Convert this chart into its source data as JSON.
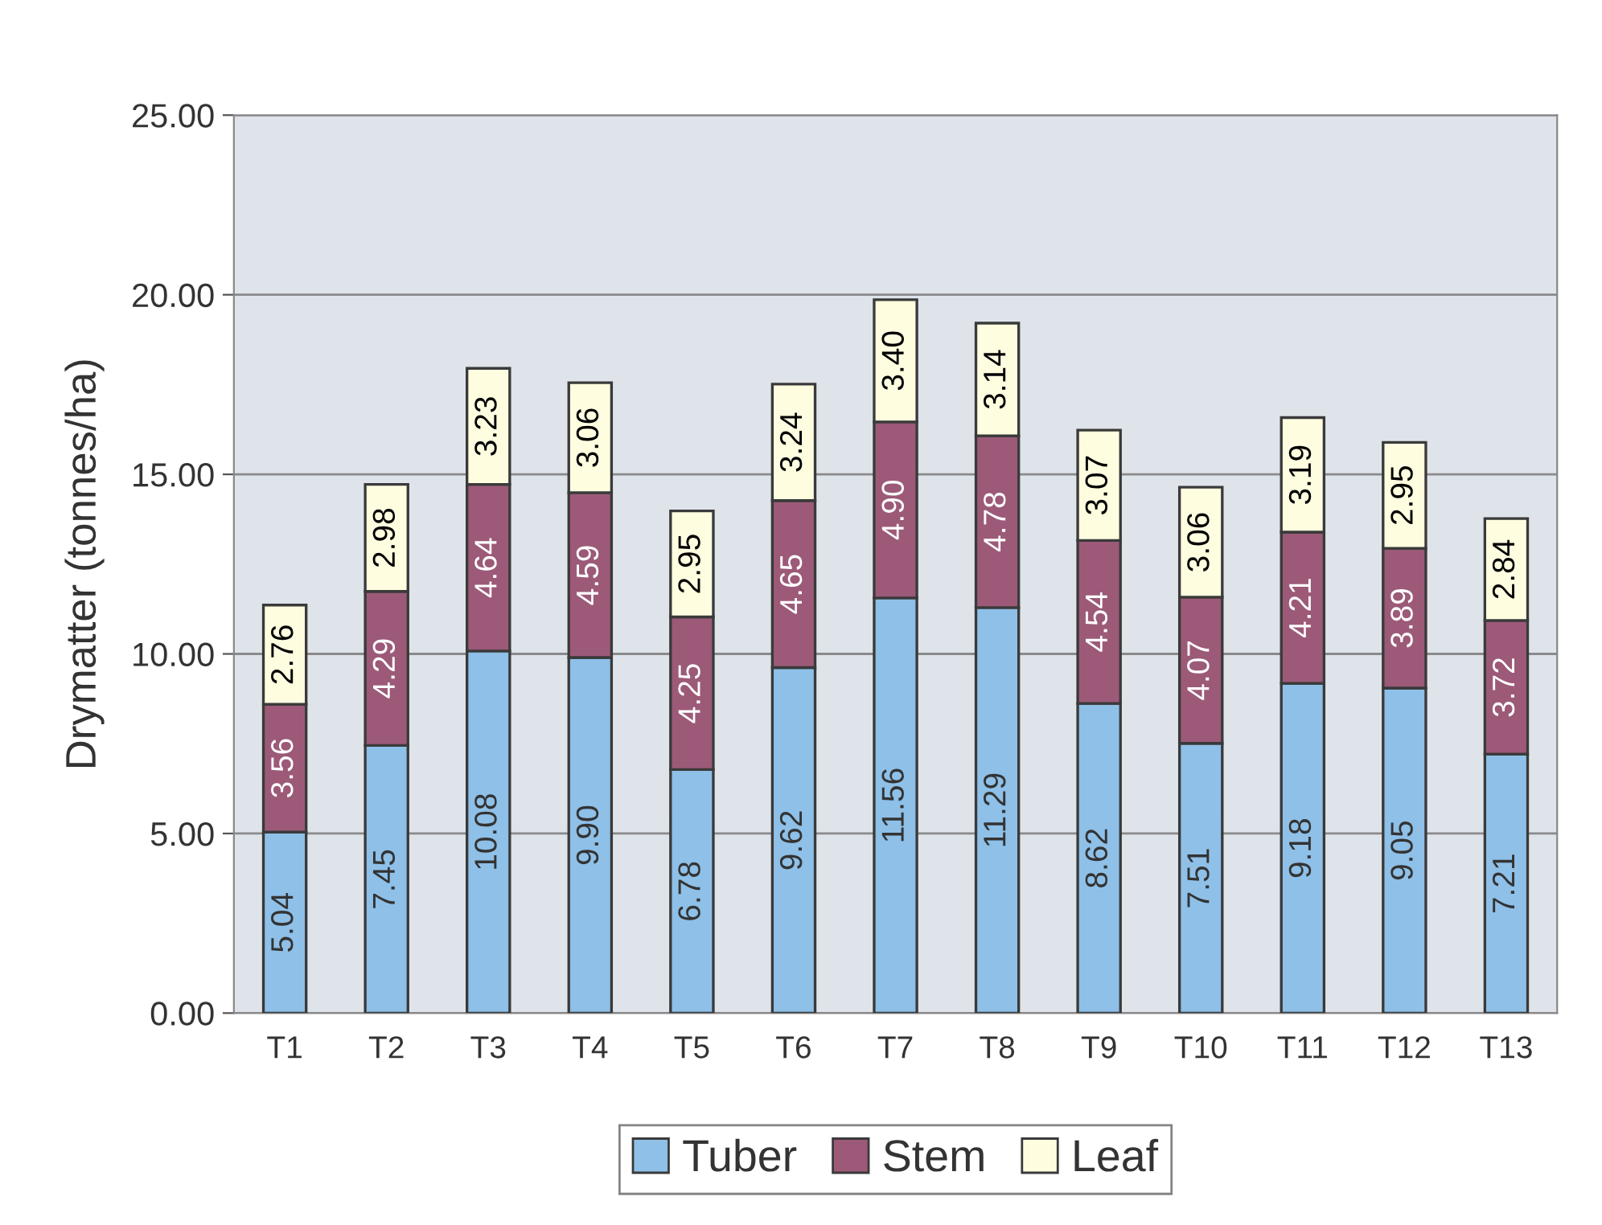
{
  "chart_data": {
    "type": "bar",
    "stacked": true,
    "ylabel": "Drymatter (tonnes/ha)",
    "categories": [
      "T1",
      "T2",
      "T3",
      "T4",
      "T5",
      "T6",
      "T7",
      "T8",
      "T9",
      "T10",
      "T11",
      "T12",
      "T13"
    ],
    "series": [
      {
        "name": "Tuber",
        "color": "#8ec0e8",
        "values": [
          5.04,
          7.45,
          10.08,
          9.9,
          6.78,
          9.62,
          11.56,
          11.29,
          8.62,
          7.51,
          9.18,
          9.05,
          7.21
        ],
        "value_labels": [
          "5.04",
          "7.45",
          "10.08",
          "9.90",
          "6.78",
          "9.62",
          "11.56",
          "11.29",
          "8.62",
          "7.51",
          "9.18",
          "9.05",
          "7.21"
        ]
      },
      {
        "name": "Stem",
        "color": "#9c5a78",
        "values": [
          3.56,
          4.29,
          4.64,
          4.59,
          4.25,
          4.65,
          4.9,
          4.78,
          4.54,
          4.07,
          4.21,
          3.89,
          3.72
        ],
        "value_labels": [
          "3.56",
          "4.29",
          "4.64",
          "4.59",
          "4.25",
          "4.65",
          "4.90",
          "4.78",
          "4.54",
          "4.07",
          "4.21",
          "3.89",
          "3.72"
        ]
      },
      {
        "name": "Leaf",
        "color": "#fffde0",
        "values": [
          2.76,
          2.98,
          3.23,
          3.06,
          2.95,
          3.24,
          3.4,
          3.14,
          3.07,
          3.06,
          3.19,
          2.95,
          2.84
        ],
        "value_labels": [
          "2.76",
          "2.98",
          "3.23",
          "3.06",
          "2.95",
          "3.24",
          "3.40",
          "3.14",
          "3.07",
          "3.06",
          "3.19",
          "2.95",
          "2.84"
        ]
      }
    ],
    "ylim": [
      0,
      25
    ],
    "yticks": [
      {
        "value": 0,
        "label": "0.00"
      },
      {
        "value": 5,
        "label": "5.00"
      },
      {
        "value": 10,
        "label": "10.00"
      },
      {
        "value": 15,
        "label": "15.00"
      },
      {
        "value": 20,
        "label": "20.00"
      },
      {
        "value": 25,
        "label": "25.00"
      }
    ],
    "grid": "y",
    "legend": "bottom"
  }
}
